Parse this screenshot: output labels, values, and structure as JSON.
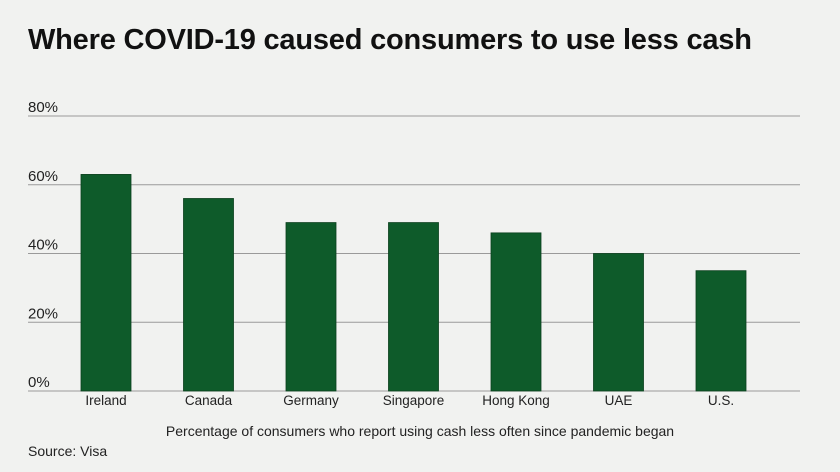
{
  "title": "Where COVID-19 caused consumers to use less cash",
  "source": "Source: Visa",
  "chart_data": {
    "type": "bar",
    "title": "Where COVID-19 caused consumers to use less cash",
    "xlabel": "Percentage of consumers who report using cash less often since pandemic began",
    "ylabel": "",
    "categories": [
      "Ireland",
      "Canada",
      "Germany",
      "Singapore",
      "Hong Kong",
      "UAE",
      "U.S."
    ],
    "values": [
      63,
      56,
      49,
      49,
      46,
      40,
      35
    ],
    "ylim": [
      0,
      80
    ],
    "yticks": [
      0,
      20,
      40,
      60,
      80
    ],
    "ytick_labels": [
      "0%",
      "20%",
      "40%",
      "60%",
      "80%"
    ],
    "grid": true,
    "bar_color": "#0e5b2a",
    "grid_color": "#9a9a9a"
  }
}
